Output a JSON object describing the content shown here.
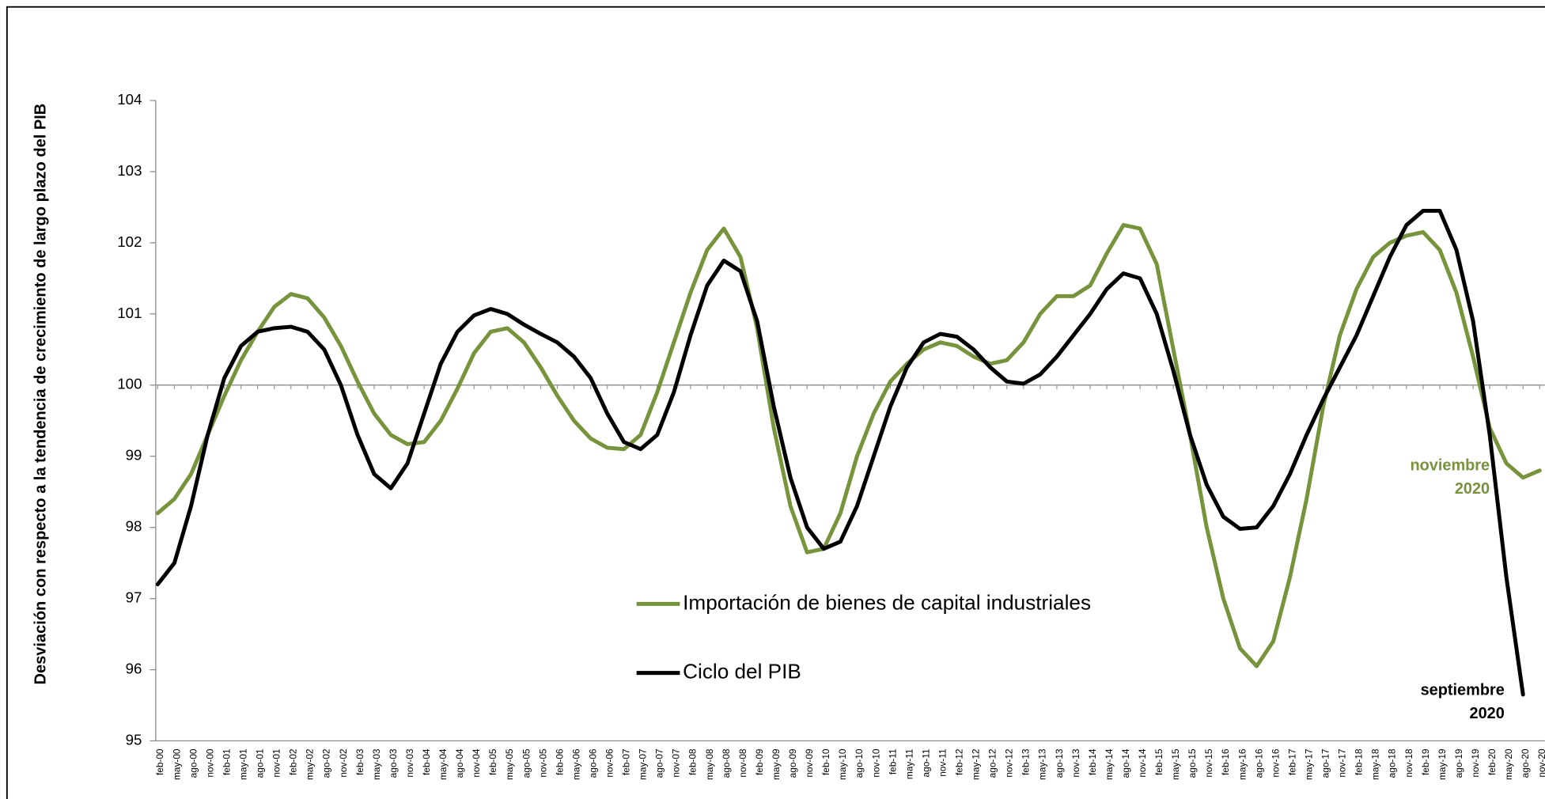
{
  "chart_data": {
    "type": "line",
    "y_label": "Desviación con respecto a la tendencia de crecimiento de largo plazo del PIB",
    "categories": [
      "feb-00",
      "may-00",
      "ago-00",
      "nov-00",
      "feb-01",
      "may-01",
      "ago-01",
      "nov-01",
      "feb-02",
      "may-02",
      "ago-02",
      "nov-02",
      "feb-03",
      "may-03",
      "ago-03",
      "nov-03",
      "feb-04",
      "may-04",
      "ago-04",
      "nov-04",
      "feb-05",
      "may-05",
      "ago-05",
      "nov-05",
      "feb-06",
      "may-06",
      "ago-06",
      "nov-06",
      "feb-07",
      "may-07",
      "ago-07",
      "nov-07",
      "feb-08",
      "may-08",
      "ago-08",
      "nov-08",
      "feb-09",
      "may-09",
      "ago-09",
      "nov-09",
      "feb-10",
      "may-10",
      "ago-10",
      "nov-10",
      "feb-11",
      "may-11",
      "ago-11",
      "nov-11",
      "feb-12",
      "may-12",
      "ago-12",
      "nov-12",
      "feb-13",
      "may-13",
      "ago-13",
      "nov-13",
      "feb-14",
      "may-14",
      "ago-14",
      "nov-14",
      "feb-15",
      "may-15",
      "ago-15",
      "nov-15",
      "feb-16",
      "may-16",
      "ago-16",
      "nov-16",
      "feb-17",
      "may-17",
      "ago-17",
      "nov-17",
      "feb-18",
      "may-18",
      "ago-18",
      "nov-18",
      "feb-19",
      "may-19",
      "ago-19",
      "nov-19",
      "feb-20",
      "may-20",
      "ago-20",
      "nov-20"
    ],
    "series": [
      {
        "name": "Importación de bienes de capital industriales",
        "color": "#77933c",
        "values": [
          98.2,
          98.4,
          98.75,
          99.3,
          99.85,
          100.35,
          100.75,
          101.1,
          101.28,
          101.22,
          100.95,
          100.55,
          100.05,
          99.6,
          99.3,
          99.17,
          99.2,
          99.5,
          99.95,
          100.45,
          100.75,
          100.8,
          100.6,
          100.25,
          99.85,
          99.5,
          99.25,
          99.12,
          99.1,
          99.3,
          99.9,
          100.6,
          101.3,
          101.9,
          102.2,
          101.8,
          100.8,
          99.4,
          98.3,
          97.65,
          97.7,
          98.2,
          99.0,
          99.6,
          100.05,
          100.3,
          100.5,
          100.6,
          100.55,
          100.4,
          100.3,
          100.35,
          100.6,
          101.0,
          101.25,
          101.25,
          101.4,
          101.85,
          102.25,
          102.2,
          101.7,
          100.5,
          99.3,
          98.0,
          97.0,
          96.3,
          96.05,
          96.4,
          97.3,
          98.4,
          99.7,
          100.7,
          101.35,
          101.8,
          102.0,
          102.1,
          102.15,
          101.9,
          101.3,
          100.4,
          99.4,
          98.9,
          98.7,
          98.8
        ]
      },
      {
        "name": "Ciclo del PIB",
        "color": "#000000",
        "values": [
          97.2,
          97.5,
          98.3,
          99.3,
          100.1,
          100.55,
          100.75,
          100.8,
          100.82,
          100.75,
          100.5,
          100.0,
          99.3,
          98.75,
          98.55,
          98.9,
          99.6,
          100.3,
          100.75,
          100.98,
          101.07,
          101.0,
          100.85,
          100.72,
          100.6,
          100.4,
          100.1,
          99.6,
          99.2,
          99.1,
          99.3,
          99.9,
          100.7,
          101.4,
          101.75,
          101.6,
          100.9,
          99.7,
          98.7,
          98.0,
          97.7,
          97.8,
          98.3,
          99.0,
          99.7,
          100.25,
          100.6,
          100.72,
          100.68,
          100.5,
          100.25,
          100.05,
          100.02,
          100.15,
          100.4,
          100.7,
          101.0,
          101.35,
          101.57,
          101.5,
          101.0,
          100.2,
          99.3,
          98.6,
          98.15,
          97.98,
          98.0,
          98.3,
          98.75,
          99.3,
          99.8,
          100.25,
          100.7,
          101.25,
          101.8,
          102.25,
          102.45,
          102.45,
          101.9,
          100.9,
          99.3,
          97.3,
          95.65,
          null
        ]
      }
    ],
    "ylim": [
      95,
      104
    ],
    "yticks": [
      95,
      96,
      97,
      98,
      99,
      100,
      101,
      102,
      103,
      104
    ],
    "reference_line": 100,
    "annotations": [
      {
        "lines": [
          "noviembre",
          "2020"
        ],
        "color": "#77933c"
      },
      {
        "lines": [
          "septiembre",
          "2020"
        ],
        "color": "#000000"
      }
    ]
  }
}
